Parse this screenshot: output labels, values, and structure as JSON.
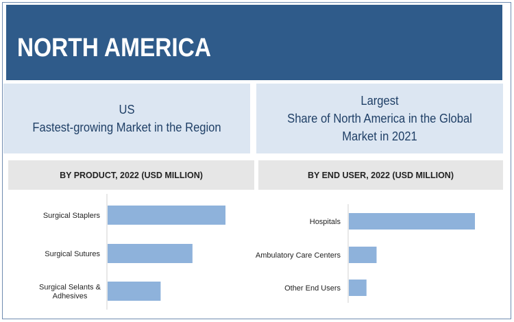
{
  "banner": {
    "title": "NORTH AMERICA"
  },
  "highlights": {
    "left": {
      "line1": "US",
      "line2": "Fastest-growing Market in the Region"
    },
    "right": {
      "line1": "Largest",
      "line2": "Share of North America in the Global",
      "line3": "Market in 2021"
    }
  },
  "colors": {
    "banner": "#2f5b8a",
    "info_box": "#dce6f2",
    "bar": "#8eb2db",
    "header": "#e6e6e6"
  },
  "chart_data": [
    {
      "type": "bar",
      "orientation": "horizontal",
      "title": "BY PRODUCT, 2022 (USD MILLION)",
      "categories": [
        "Surgical Staplers",
        "Surgical Sutures",
        "Surgical Selants & Adhesives"
      ],
      "category_lines": [
        [
          "Surgical Staplers"
        ],
        [
          "Surgical Sutures"
        ],
        [
          "Surgical Selants &",
          "Adhesives"
        ]
      ],
      "values": [
        100,
        72,
        45
      ],
      "value_scale": "relative, no axis values shown"
    },
    {
      "type": "bar",
      "orientation": "horizontal",
      "title": "BY END USER, 2022 (USD MILLION)",
      "categories": [
        "Hospitals",
        "Ambulatory Care Centers",
        "Other End Users"
      ],
      "category_lines": [
        [
          "Hospitals"
        ],
        [
          "Ambulatory Care Centers"
        ],
        [
          "Other End Users"
        ]
      ],
      "values": [
        100,
        22,
        14
      ],
      "value_scale": "relative, no axis values shown"
    }
  ]
}
